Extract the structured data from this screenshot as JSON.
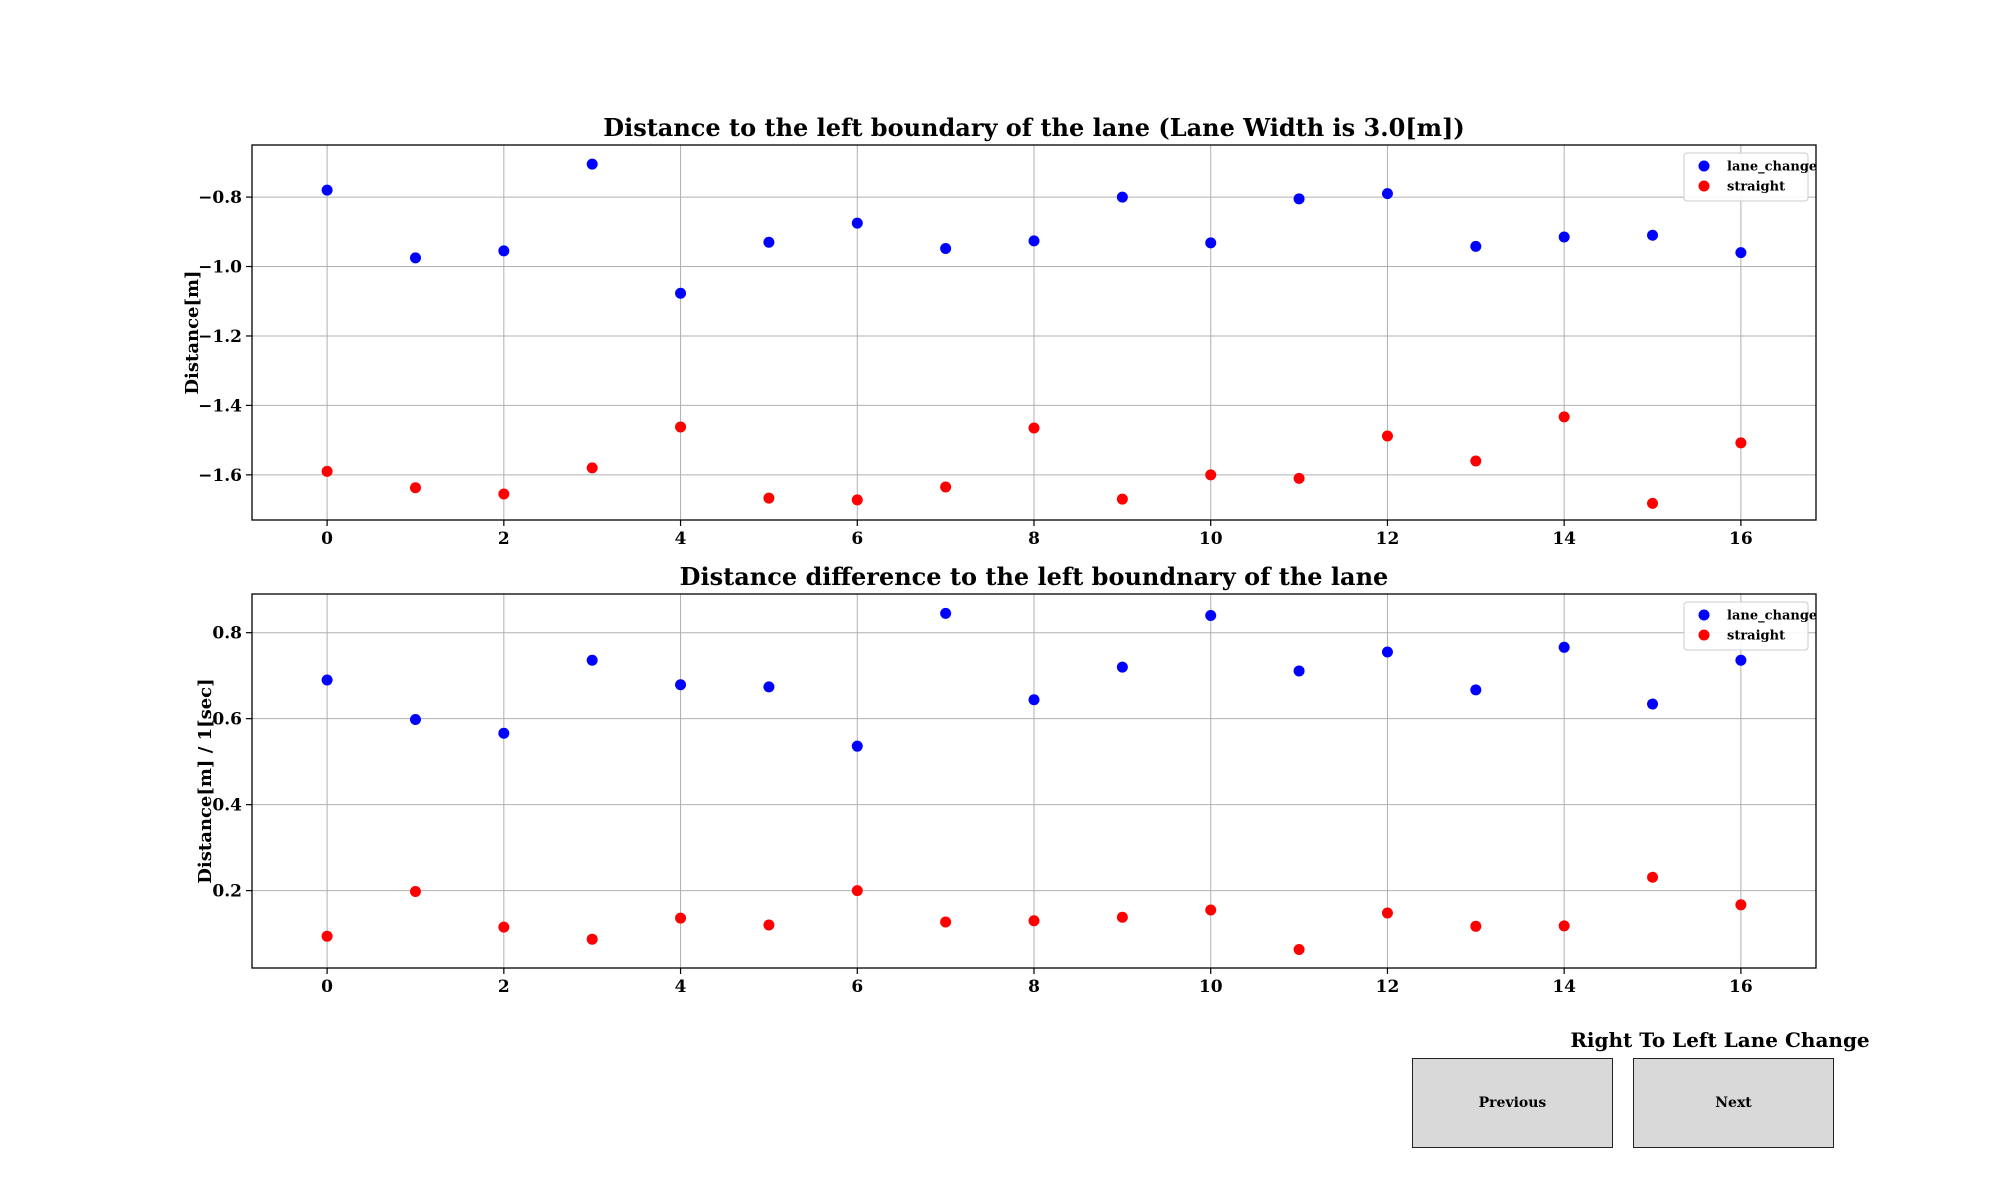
{
  "chart_data": [
    {
      "type": "scatter",
      "title": "Distance to the left boundary of the lane (Lane Width is 3.0[m])",
      "xlabel": "",
      "ylabel": "Distance[m]",
      "xlim": [
        -0.85,
        16.85
      ],
      "ylim": [
        -1.73,
        -0.65
      ],
      "xticks": [
        0,
        2,
        4,
        6,
        8,
        10,
        12,
        14,
        16
      ],
      "yticks": [
        -1.6,
        -1.4,
        -1.2,
        -1.0,
        -0.8
      ],
      "ytick_labels": [
        "−1.6",
        "−1.4",
        "−1.2",
        "−1.0",
        "−0.8"
      ],
      "grid": true,
      "legend": "top-right",
      "x": [
        0,
        1,
        2,
        3,
        4,
        5,
        6,
        7,
        8,
        9,
        10,
        11,
        12,
        13,
        14,
        15,
        16
      ],
      "series": [
        {
          "name": "lane_change",
          "color": "#0000ff",
          "values": [
            -0.78,
            -0.975,
            -0.955,
            -0.705,
            -1.077,
            -0.93,
            -0.875,
            -0.948,
            -0.926,
            -0.8,
            -0.932,
            -0.805,
            -0.79,
            -0.942,
            -0.915,
            -0.91,
            -0.96
          ]
        },
        {
          "name": "straight",
          "color": "#ff0000",
          "values": [
            -1.59,
            -1.637,
            -1.655,
            -1.58,
            -1.462,
            -1.667,
            -1.672,
            -1.635,
            -1.465,
            -1.67,
            -1.6,
            -1.61,
            -1.488,
            -1.56,
            -1.433,
            -1.682,
            -1.508
          ]
        }
      ]
    },
    {
      "type": "scatter",
      "title": "Distance difference to the left boundnary of the lane",
      "xlabel": "",
      "ylabel": "Distance[m] / 1[sec]",
      "xlim": [
        -0.85,
        16.85
      ],
      "ylim": [
        0.02,
        0.89
      ],
      "xticks": [
        0,
        2,
        4,
        6,
        8,
        10,
        12,
        14,
        16
      ],
      "yticks": [
        0.2,
        0.4,
        0.6,
        0.8
      ],
      "ytick_labels": [
        "0.2",
        "0.4",
        "0.6",
        "0.8"
      ],
      "grid": true,
      "legend": "top-right",
      "x": [
        0,
        1,
        2,
        3,
        4,
        5,
        6,
        7,
        8,
        9,
        10,
        11,
        12,
        13,
        14,
        15,
        16
      ],
      "series": [
        {
          "name": "lane_change",
          "color": "#0000ff",
          "values": [
            0.69,
            0.598,
            0.566,
            0.736,
            0.679,
            0.674,
            0.536,
            0.845,
            0.644,
            0.72,
            0.84,
            0.711,
            0.755,
            0.667,
            0.766,
            0.634,
            0.736
          ]
        },
        {
          "name": "straight",
          "color": "#ff0000",
          "values": [
            0.094,
            0.198,
            0.115,
            0.087,
            0.136,
            0.12,
            0.2,
            0.127,
            0.13,
            0.138,
            0.155,
            0.063,
            0.148,
            0.117,
            0.118,
            0.231,
            0.167
          ]
        }
      ]
    }
  ],
  "controls": {
    "case_title": "Right To Left Lane Change",
    "previous_label": "Previous",
    "next_label": "Next"
  }
}
